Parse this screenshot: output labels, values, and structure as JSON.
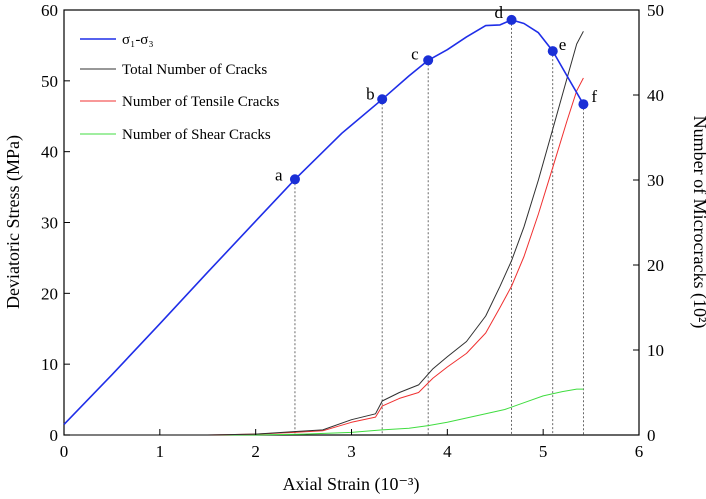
{
  "chart_data": {
    "type": "line",
    "xlabel": "Axial Strain (10⁻³)",
    "ylabel_left": "Deviatoric Stress (MPa)",
    "ylabel_right": "Number of  Microcracks (10²)",
    "xlim": [
      0,
      6
    ],
    "ylim_left": [
      0,
      60
    ],
    "ylim_right": [
      0,
      50
    ],
    "x_ticks": [
      "0",
      "1",
      "2",
      "3",
      "4",
      "5",
      "6"
    ],
    "y_left_ticks": [
      "0",
      "10",
      "20",
      "30",
      "40",
      "50",
      "60"
    ],
    "y_right_ticks": [
      "0",
      "10",
      "20",
      "30",
      "40",
      "50"
    ],
    "grid": false,
    "legend_position": "top-left",
    "colors": {
      "stress": "#1f2ee8",
      "total": "#303030",
      "tensile": "#f03030",
      "shear": "#40dd40",
      "marker": "#1a2fd6"
    },
    "series": [
      {
        "name": "σ₁-σ₃",
        "axis": "left",
        "color_key": "stress",
        "points": [
          [
            0,
            1.5
          ],
          [
            0.5,
            8.5
          ],
          [
            1,
            15.7
          ],
          [
            1.5,
            23
          ],
          [
            2,
            30.2
          ],
          [
            2.41,
            36.1
          ],
          [
            2.9,
            42.6
          ],
          [
            3.32,
            47.4
          ],
          [
            3.6,
            50.7
          ],
          [
            3.8,
            52.9
          ],
          [
            4.0,
            54.4
          ],
          [
            4.2,
            56.2
          ],
          [
            4.4,
            57.8
          ],
          [
            4.55,
            57.9
          ],
          [
            4.67,
            58.6
          ],
          [
            4.8,
            58.1
          ],
          [
            4.95,
            56.8
          ],
          [
            5.1,
            54.2
          ],
          [
            5.3,
            49.5
          ],
          [
            5.42,
            46.7
          ]
        ]
      },
      {
        "name": "Total Number of Cracks",
        "axis": "right",
        "color_key": "total",
        "points": [
          [
            0,
            0
          ],
          [
            1.5,
            0
          ],
          [
            2.0,
            0.1
          ],
          [
            2.4,
            0.4
          ],
          [
            2.7,
            0.6
          ],
          [
            3.0,
            1.8
          ],
          [
            3.25,
            2.5
          ],
          [
            3.32,
            4.0
          ],
          [
            3.5,
            5.0
          ],
          [
            3.7,
            5.9
          ],
          [
            3.85,
            7.8
          ],
          [
            4.0,
            9.2
          ],
          [
            4.2,
            11.0
          ],
          [
            4.4,
            14.0
          ],
          [
            4.55,
            17.5
          ],
          [
            4.67,
            20.5
          ],
          [
            4.8,
            24.5
          ],
          [
            4.95,
            30.0
          ],
          [
            5.1,
            36.0
          ],
          [
            5.25,
            42.0
          ],
          [
            5.35,
            46.0
          ],
          [
            5.42,
            47.5
          ]
        ]
      },
      {
        "name": "Number of Tensile Cracks",
        "axis": "right",
        "color_key": "tensile",
        "points": [
          [
            0,
            0
          ],
          [
            1.5,
            0
          ],
          [
            2.0,
            0.1
          ],
          [
            2.4,
            0.3
          ],
          [
            2.7,
            0.5
          ],
          [
            3.0,
            1.5
          ],
          [
            3.25,
            2.1
          ],
          [
            3.32,
            3.4
          ],
          [
            3.5,
            4.3
          ],
          [
            3.7,
            5.0
          ],
          [
            3.85,
            6.7
          ],
          [
            4.0,
            8.0
          ],
          [
            4.2,
            9.6
          ],
          [
            4.4,
            12.0
          ],
          [
            4.55,
            15.0
          ],
          [
            4.67,
            17.5
          ],
          [
            4.8,
            21.0
          ],
          [
            4.95,
            26.0
          ],
          [
            5.1,
            31.5
          ],
          [
            5.25,
            37.0
          ],
          [
            5.35,
            40.5
          ],
          [
            5.42,
            42.0
          ]
        ]
      },
      {
        "name": "Number of Shear Cracks",
        "axis": "right",
        "color_key": "shear",
        "points": [
          [
            0,
            0
          ],
          [
            2.0,
            0
          ],
          [
            2.5,
            0.1
          ],
          [
            3.0,
            0.3
          ],
          [
            3.32,
            0.6
          ],
          [
            3.6,
            0.8
          ],
          [
            3.8,
            1.1
          ],
          [
            4.0,
            1.5
          ],
          [
            4.2,
            2.0
          ],
          [
            4.4,
            2.5
          ],
          [
            4.6,
            3.0
          ],
          [
            4.8,
            3.8
          ],
          [
            5.0,
            4.6
          ],
          [
            5.2,
            5.1
          ],
          [
            5.35,
            5.4
          ],
          [
            5.42,
            5.4
          ]
        ]
      }
    ],
    "key_points": [
      {
        "label": "a",
        "x": 2.41,
        "y": 36.1
      },
      {
        "label": "b",
        "x": 3.32,
        "y": 47.4
      },
      {
        "label": "c",
        "x": 3.8,
        "y": 52.9
      },
      {
        "label": "d",
        "x": 4.67,
        "y": 58.6
      },
      {
        "label": "e",
        "x": 5.1,
        "y": 54.2
      },
      {
        "label": "f",
        "x": 5.42,
        "y": 46.7
      }
    ]
  }
}
